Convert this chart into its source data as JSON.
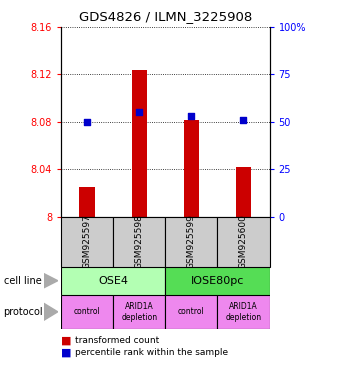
{
  "title": "GDS4826 / ILMN_3225908",
  "samples": [
    "GSM925597",
    "GSM925598",
    "GSM925599",
    "GSM925600"
  ],
  "bar_values": [
    8.025,
    8.124,
    8.082,
    8.042
  ],
  "blue_values": [
    50,
    55,
    53,
    51
  ],
  "ylim_left": [
    8.0,
    8.16
  ],
  "ylim_right": [
    0,
    100
  ],
  "yticks_left": [
    8.0,
    8.04,
    8.08,
    8.12,
    8.16
  ],
  "ytick_labels_left": [
    "8",
    "8.04",
    "8.08",
    "8.12",
    "8.16"
  ],
  "yticks_right": [
    0,
    25,
    50,
    75,
    100
  ],
  "ytick_labels_right": [
    "0",
    "25",
    "50",
    "75",
    "100%"
  ],
  "bar_color": "#cc0000",
  "blue_color": "#0000cc",
  "cell_line_colors": [
    "#b3ffb3",
    "#55dd55"
  ],
  "protocol_color": "#ee88ee",
  "sample_box_color": "#cccccc",
  "legend_red_label": "transformed count",
  "legend_blue_label": "percentile rank within the sample"
}
